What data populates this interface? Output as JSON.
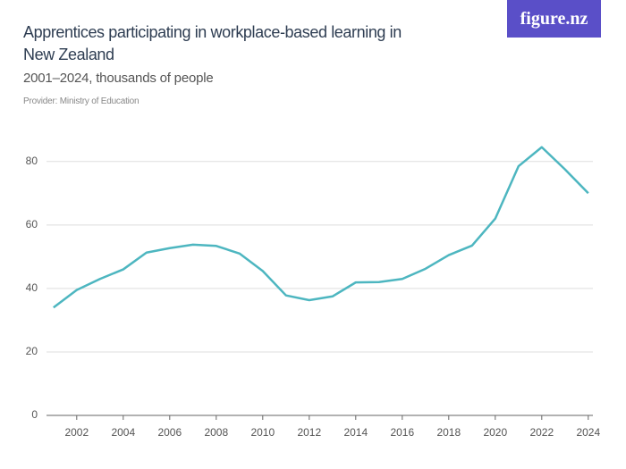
{
  "chart_data": {
    "type": "line",
    "title": "Apprentices participating in workplace-based learning in New Zealand",
    "subtitle": "2001–2024, thousands of people",
    "provider": "Provider: Ministry of Education",
    "logo": "figure.nz",
    "x": [
      2001,
      2002,
      2003,
      2004,
      2005,
      2006,
      2007,
      2008,
      2009,
      2010,
      2011,
      2012,
      2013,
      2014,
      2015,
      2016,
      2017,
      2018,
      2019,
      2020,
      2021,
      2022,
      2023,
      2024
    ],
    "series": [
      {
        "color": "#4db6c0",
        "values": [
          34,
          39.5,
          43,
          46,
          51.3,
          52.7,
          53.8,
          53.4,
          51,
          45.5,
          37.8,
          36.3,
          37.5,
          41.9,
          42,
          43,
          46.2,
          50.5,
          53.5,
          62,
          78.5,
          84.5,
          77.5,
          70
        ]
      }
    ],
    "xlim": [
      2000.7,
      2024.2
    ],
    "xticks": [
      2002,
      2004,
      2006,
      2008,
      2010,
      2012,
      2014,
      2016,
      2018,
      2020,
      2022,
      2024
    ],
    "ylim": [
      0,
      85
    ],
    "yticks": [
      0,
      20,
      40,
      60,
      80
    ],
    "grid": true
  }
}
